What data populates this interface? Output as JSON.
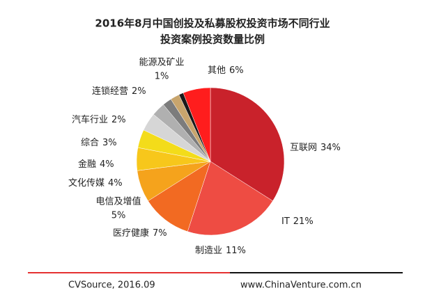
{
  "chart_data": {
    "type": "pie",
    "title": [
      "2016年8月中国创投及私募股权投资市场不同行业",
      "投资案例投资数量比例"
    ],
    "categories": [
      "互联网",
      "IT",
      "制造业",
      "医疗健康",
      "电信及增值",
      "文化传媒",
      "金融",
      "综合",
      "汽车行业",
      "连锁经营",
      "能源及矿业",
      "其他"
    ],
    "values": [
      34,
      21,
      11,
      7,
      5,
      4,
      4,
      3,
      2,
      2,
      1,
      6
    ],
    "value_labels": [
      "34%",
      "21%",
      "11%",
      "7%",
      "5%",
      "4%",
      "4%",
      "3%",
      "2%",
      "2%",
      "1%",
      "6%"
    ],
    "colors": [
      "#c9222b",
      "#ee4c43",
      "#f26a22",
      "#f5a31c",
      "#f7c71b",
      "#f3dc1a",
      "#d6d6d6",
      "#b0b0b0",
      "#7c7c7c",
      "#c8a56d",
      "#1a1a1a",
      "#ff1d1d"
    ],
    "source": "CVSource, 2016.09",
    "website": "www.ChinaVenture.com.cn"
  }
}
